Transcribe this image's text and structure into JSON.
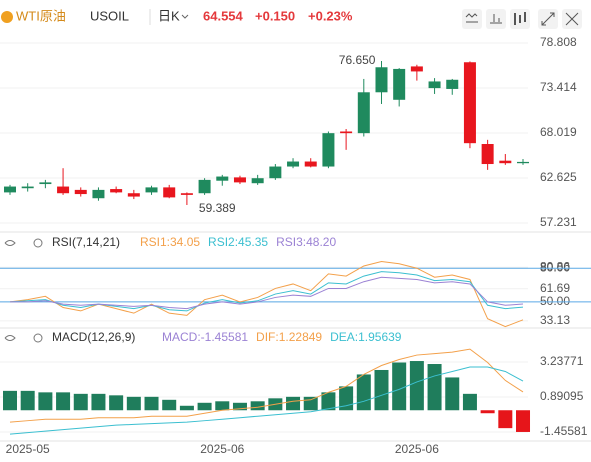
{
  "header": {
    "name": "WTI原油",
    "symbol": "USOIL",
    "period": "日K",
    "price": "64.554",
    "change": "+0.150",
    "change_pct": "+0.23%"
  },
  "chart_data": [
    {
      "type": "candlestick",
      "categories": [
        null,
        "2025-05",
        null,
        null,
        null,
        null,
        null,
        null,
        null,
        null,
        null,
        null,
        "2025-06",
        null,
        null,
        null,
        null,
        null,
        null,
        null,
        null,
        null,
        null,
        "2025-06",
        null,
        null,
        null,
        null,
        null,
        null
      ],
      "open": [
        60.9,
        61.4,
        61.9,
        61.6,
        61.2,
        60.2,
        61.3,
        60.8,
        60.9,
        61.5,
        60.8,
        60.8,
        62.3,
        62.7,
        62.0,
        62.6,
        64.0,
        64.6,
        64.0,
        68.2,
        68.0,
        72.9,
        72.0,
        76.0,
        73.4,
        73.3,
        76.5,
        66.7,
        64.7,
        64.4
      ],
      "high": [
        61.8,
        62.0,
        62.4,
        63.8,
        61.5,
        61.5,
        61.6,
        61.2,
        61.7,
        61.8,
        60.9,
        62.6,
        63.0,
        62.9,
        63.0,
        64.3,
        65.0,
        65.0,
        68.2,
        68.5,
        74.5,
        76.65,
        75.8,
        76.2,
        74.6,
        74.5,
        76.6,
        67.2,
        65.5,
        64.9
      ],
      "low": [
        60.6,
        61.0,
        61.4,
        60.6,
        60.4,
        59.9,
        60.8,
        60.1,
        60.6,
        60.2,
        59.389,
        60.6,
        61.7,
        61.9,
        61.8,
        62.4,
        63.8,
        63.9,
        63.8,
        66.0,
        67.6,
        71.5,
        71.2,
        74.3,
        72.7,
        72.6,
        66.2,
        63.6,
        64.2,
        64.2
      ],
      "close": [
        61.6,
        61.6,
        62.1,
        60.8,
        60.7,
        61.2,
        60.9,
        60.4,
        61.5,
        60.3,
        60.6,
        62.4,
        62.8,
        62.1,
        62.6,
        64.0,
        64.6,
        64.0,
        68.0,
        68.0,
        72.9,
        75.9,
        75.7,
        75.4,
        74.2,
        74.4,
        66.8,
        64.3,
        64.4,
        64.554
      ],
      "high_labels": [
        null,
        null,
        null,
        null,
        null,
        null,
        null,
        null,
        null,
        null,
        null,
        null,
        null,
        null,
        null,
        null,
        null,
        null,
        null,
        null,
        null,
        "76.650",
        null,
        null,
        null,
        null,
        null,
        null,
        null,
        null
      ],
      "low_labels": [
        null,
        null,
        null,
        null,
        null,
        null,
        null,
        null,
        null,
        null,
        "59.389",
        null,
        null,
        null,
        null,
        null,
        null,
        null,
        null,
        null,
        null,
        null,
        null,
        null,
        null,
        null,
        null,
        null,
        null,
        null
      ],
      "up_color": "#1f8a5e",
      "down_color": "#e8161e",
      "ylim": [
        57.231,
        78.808
      ],
      "yticks": [
        78.808,
        73.414,
        68.019,
        62.625,
        57.231
      ]
    },
    {
      "type": "line",
      "title": "RSI(7,14,21)",
      "series": [
        {
          "name": "RSI1:34.05",
          "color": "#f3a04a",
          "values": [
            50,
            52,
            55,
            45,
            42,
            48,
            44,
            40,
            48,
            40,
            38,
            52,
            56,
            50,
            54,
            62,
            66,
            60,
            75,
            73,
            82,
            86,
            84,
            80,
            72,
            74,
            70,
            35,
            28,
            34.05
          ]
        },
        {
          "name": "RSI2:45.35",
          "color": "#3bbfd0",
          "values": [
            50,
            51,
            52,
            47,
            45,
            48,
            46,
            44,
            47,
            43,
            42,
            49,
            52,
            49,
            51,
            57,
            60,
            57,
            67,
            66,
            73,
            77,
            76,
            74,
            69,
            70,
            68,
            47,
            44,
            45.35
          ]
        },
        {
          "name": "RSI3:48.20",
          "color": "#9b82d4",
          "values": [
            50,
            50,
            51,
            48,
            47,
            48,
            47,
            46,
            47,
            45,
            44,
            48,
            50,
            48,
            50,
            54,
            56,
            55,
            62,
            62,
            68,
            72,
            71,
            70,
            67,
            68,
            66,
            50,
            47,
            48.2
          ]
        }
      ],
      "reference_lines": [
        80,
        50
      ],
      "reference_color": "#5aa9e6",
      "ylim": [
        25,
        90
      ],
      "yticks": [
        80.86,
        {
          "value": 80,
          "label": "80.00"
        },
        61.69,
        {
          "value": 50,
          "label": "50.00"
        },
        33.13
      ]
    },
    {
      "type": "macd",
      "title": "MACD(12,26,9)",
      "bars": {
        "name": "MACD:-1.45581",
        "color": "#9b82d4",
        "up_color": "#1f7d5c",
        "down_color": "#e6151a",
        "values": [
          1.3,
          1.3,
          1.2,
          1.2,
          1.1,
          1.1,
          1.0,
          0.9,
          0.9,
          0.7,
          0.3,
          0.5,
          0.6,
          0.5,
          0.6,
          0.8,
          0.9,
          0.9,
          1.2,
          1.6,
          2.4,
          2.7,
          3.2,
          3.3,
          3.1,
          2.2,
          1.1,
          -0.2,
          -1.2,
          -1.45581
        ]
      },
      "series": [
        {
          "name": "DIF:1.22849",
          "color": "#f3a04a",
          "values": [
            -0.8,
            -0.7,
            -0.6,
            -0.6,
            -0.6,
            -0.5,
            -0.5,
            -0.5,
            -0.4,
            -0.4,
            -0.4,
            -0.2,
            0,
            0.1,
            0.2,
            0.4,
            0.6,
            0.7,
            1.2,
            1.6,
            2.4,
            3.0,
            3.4,
            3.7,
            3.8,
            3.9,
            4.1,
            3.2,
            2.0,
            1.22849
          ]
        },
        {
          "name": "DEA:1.95639",
          "color": "#3bbfd0",
          "values": [
            -1.6,
            -1.5,
            -1.4,
            -1.3,
            -1.2,
            -1.1,
            -1.0,
            -0.95,
            -0.9,
            -0.85,
            -0.8,
            -0.7,
            -0.6,
            -0.5,
            -0.4,
            -0.3,
            -0.2,
            -0.1,
            0.1,
            0.3,
            0.6,
            1.0,
            1.4,
            1.9,
            2.3,
            2.6,
            2.9,
            2.9,
            2.6,
            1.95639
          ]
        }
      ],
      "ylim": [
        -2.33,
        4.71
      ],
      "yticks": [
        3.23771,
        0.89095,
        -1.45581
      ]
    }
  ]
}
